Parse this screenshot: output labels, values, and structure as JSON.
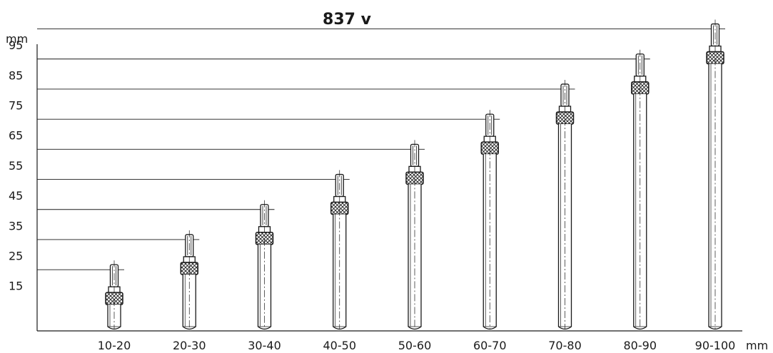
{
  "title": "837 v",
  "y_unit": "mm",
  "x_unit": "mm",
  "chart_data": {
    "type": "diagram",
    "title": "837 v",
    "ylabel": "mm",
    "xlabel": "mm",
    "y_ticks": [
      15,
      25,
      35,
      45,
      55,
      65,
      75,
      85,
      95
    ],
    "ylim": [
      0,
      100
    ],
    "categories": [
      "10-20",
      "20-30",
      "30-40",
      "40-50",
      "50-60",
      "60-70",
      "70-80",
      "80-90",
      "90-100"
    ],
    "values": [
      22,
      32,
      42,
      52,
      62,
      72,
      82,
      92,
      102
    ],
    "grid": false
  }
}
